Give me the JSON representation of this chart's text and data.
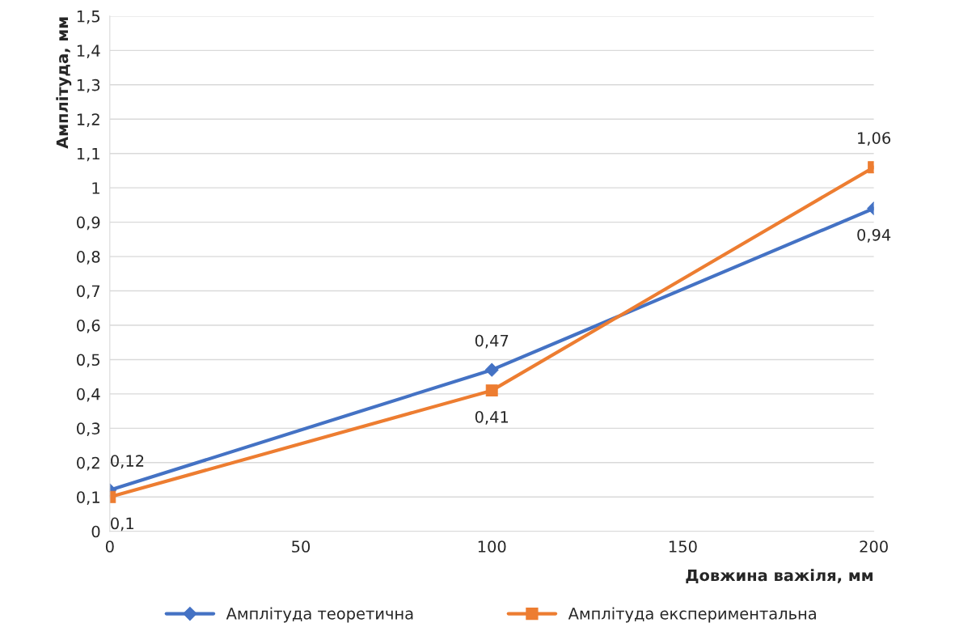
{
  "chart_data": {
    "type": "line",
    "xlabel": "Довжина важіля, мм",
    "ylabel": "Амплітуда, мм",
    "x": [
      0,
      100,
      200
    ],
    "series": [
      {
        "name": "Амплітуда теоретична",
        "color": "#4472c4",
        "marker": "diamond",
        "values": [
          0.12,
          0.47,
          0.94
        ],
        "value_labels": [
          "0,12",
          "0,47",
          "0,94"
        ]
      },
      {
        "name": "Амплітуда експериментальна",
        "color": "#ed7d31",
        "marker": "square",
        "values": [
          0.1,
          0.41,
          1.06
        ],
        "value_labels": [
          "0,1",
          "0,41",
          "1,06"
        ]
      }
    ],
    "xlim": [
      0,
      200
    ],
    "xticks": [
      0,
      50,
      100,
      150,
      200
    ],
    "ylim": [
      0,
      1.5
    ],
    "yticks": [
      0,
      {
        "value": 0.1,
        "label": "0,1"
      },
      {
        "value": 0.2,
        "label": "0,2"
      },
      {
        "value": 0.3,
        "label": "0,3"
      },
      {
        "value": 0.4,
        "label": "0,4"
      },
      {
        "value": 0.5,
        "label": "0,5"
      },
      {
        "value": 0.6,
        "label": "0,6"
      },
      {
        "value": 0.7,
        "label": "0,7"
      },
      {
        "value": 0.8,
        "label": "0,8"
      },
      {
        "value": 0.9,
        "label": "0,9"
      },
      1,
      {
        "value": 1.1,
        "label": "1,1"
      },
      {
        "value": 1.2,
        "label": "1,2"
      },
      {
        "value": 1.3,
        "label": "1,3"
      },
      {
        "value": 1.4,
        "label": "1,4"
      },
      {
        "value": 1.5,
        "label": "1,5"
      }
    ],
    "grid": "y",
    "legend": "bottom",
    "line_style": "solid"
  }
}
